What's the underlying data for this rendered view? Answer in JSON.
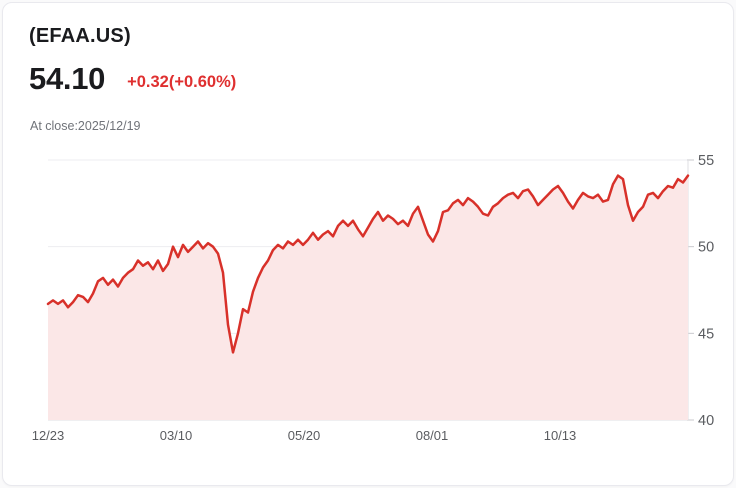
{
  "header": {
    "symbol": "(EFAA.US)",
    "price": "54.10",
    "change": "+0.32(+0.60%)",
    "at_close": "At close:2025/12/19"
  },
  "colors": {
    "line": "#d8312a",
    "fill": "#fbe7e7",
    "change_text": "#df3030",
    "grid": "#ededf0",
    "axis": "#dfdfe3",
    "tick": "#c9c9ce",
    "axis_label": "#5a5c60"
  },
  "chart_data": {
    "type": "area",
    "title": "EFAA.US one-year price line chart",
    "xlabel": "",
    "ylabel": "",
    "ylim": [
      40,
      55
    ],
    "grid": true,
    "legend": "none",
    "yticks": [
      {
        "label": "55",
        "value": 55
      },
      {
        "label": "50",
        "value": 50
      },
      {
        "label": "45",
        "value": 45
      },
      {
        "label": "40",
        "value": 40
      }
    ],
    "xticks": [
      {
        "label": "12/23",
        "pos": 0.0
      },
      {
        "label": "03/10",
        "pos": 0.2
      },
      {
        "label": "05/20",
        "pos": 0.4
      },
      {
        "label": "08/01",
        "pos": 0.6
      },
      {
        "label": "10/13",
        "pos": 0.8
      }
    ],
    "last_close_value": 54.1,
    "values": [
      46.7,
      46.9,
      46.7,
      46.9,
      46.5,
      46.8,
      47.2,
      47.1,
      46.8,
      47.3,
      48.0,
      48.2,
      47.8,
      48.1,
      47.7,
      48.2,
      48.5,
      48.7,
      49.2,
      48.9,
      49.1,
      48.7,
      49.2,
      48.6,
      49.0,
      50.0,
      49.4,
      50.1,
      49.7,
      50.0,
      50.3,
      49.9,
      50.2,
      50.0,
      49.6,
      48.5,
      45.5,
      43.9,
      45.0,
      46.4,
      46.2,
      47.4,
      48.2,
      48.8,
      49.2,
      49.8,
      50.1,
      49.9,
      50.3,
      50.1,
      50.4,
      50.1,
      50.4,
      50.8,
      50.4,
      50.7,
      50.9,
      50.6,
      51.2,
      51.5,
      51.2,
      51.5,
      51.0,
      50.6,
      51.1,
      51.6,
      52.0,
      51.5,
      51.8,
      51.6,
      51.3,
      51.5,
      51.2,
      51.9,
      52.3,
      51.5,
      50.7,
      50.3,
      50.9,
      52.0,
      52.1,
      52.5,
      52.7,
      52.4,
      52.8,
      52.6,
      52.3,
      51.9,
      51.8,
      52.3,
      52.5,
      52.8,
      53.0,
      53.1,
      52.8,
      53.2,
      53.3,
      52.9,
      52.4,
      52.7,
      53.0,
      53.3,
      53.5,
      53.1,
      52.6,
      52.2,
      52.7,
      53.1,
      52.9,
      52.8,
      53.0,
      52.6,
      52.7,
      53.6,
      54.1,
      53.9,
      52.4,
      51.5,
      52.0,
      52.3,
      53.0,
      53.1,
      52.8,
      53.2,
      53.5,
      53.4,
      53.9,
      53.7,
      54.1
    ]
  }
}
